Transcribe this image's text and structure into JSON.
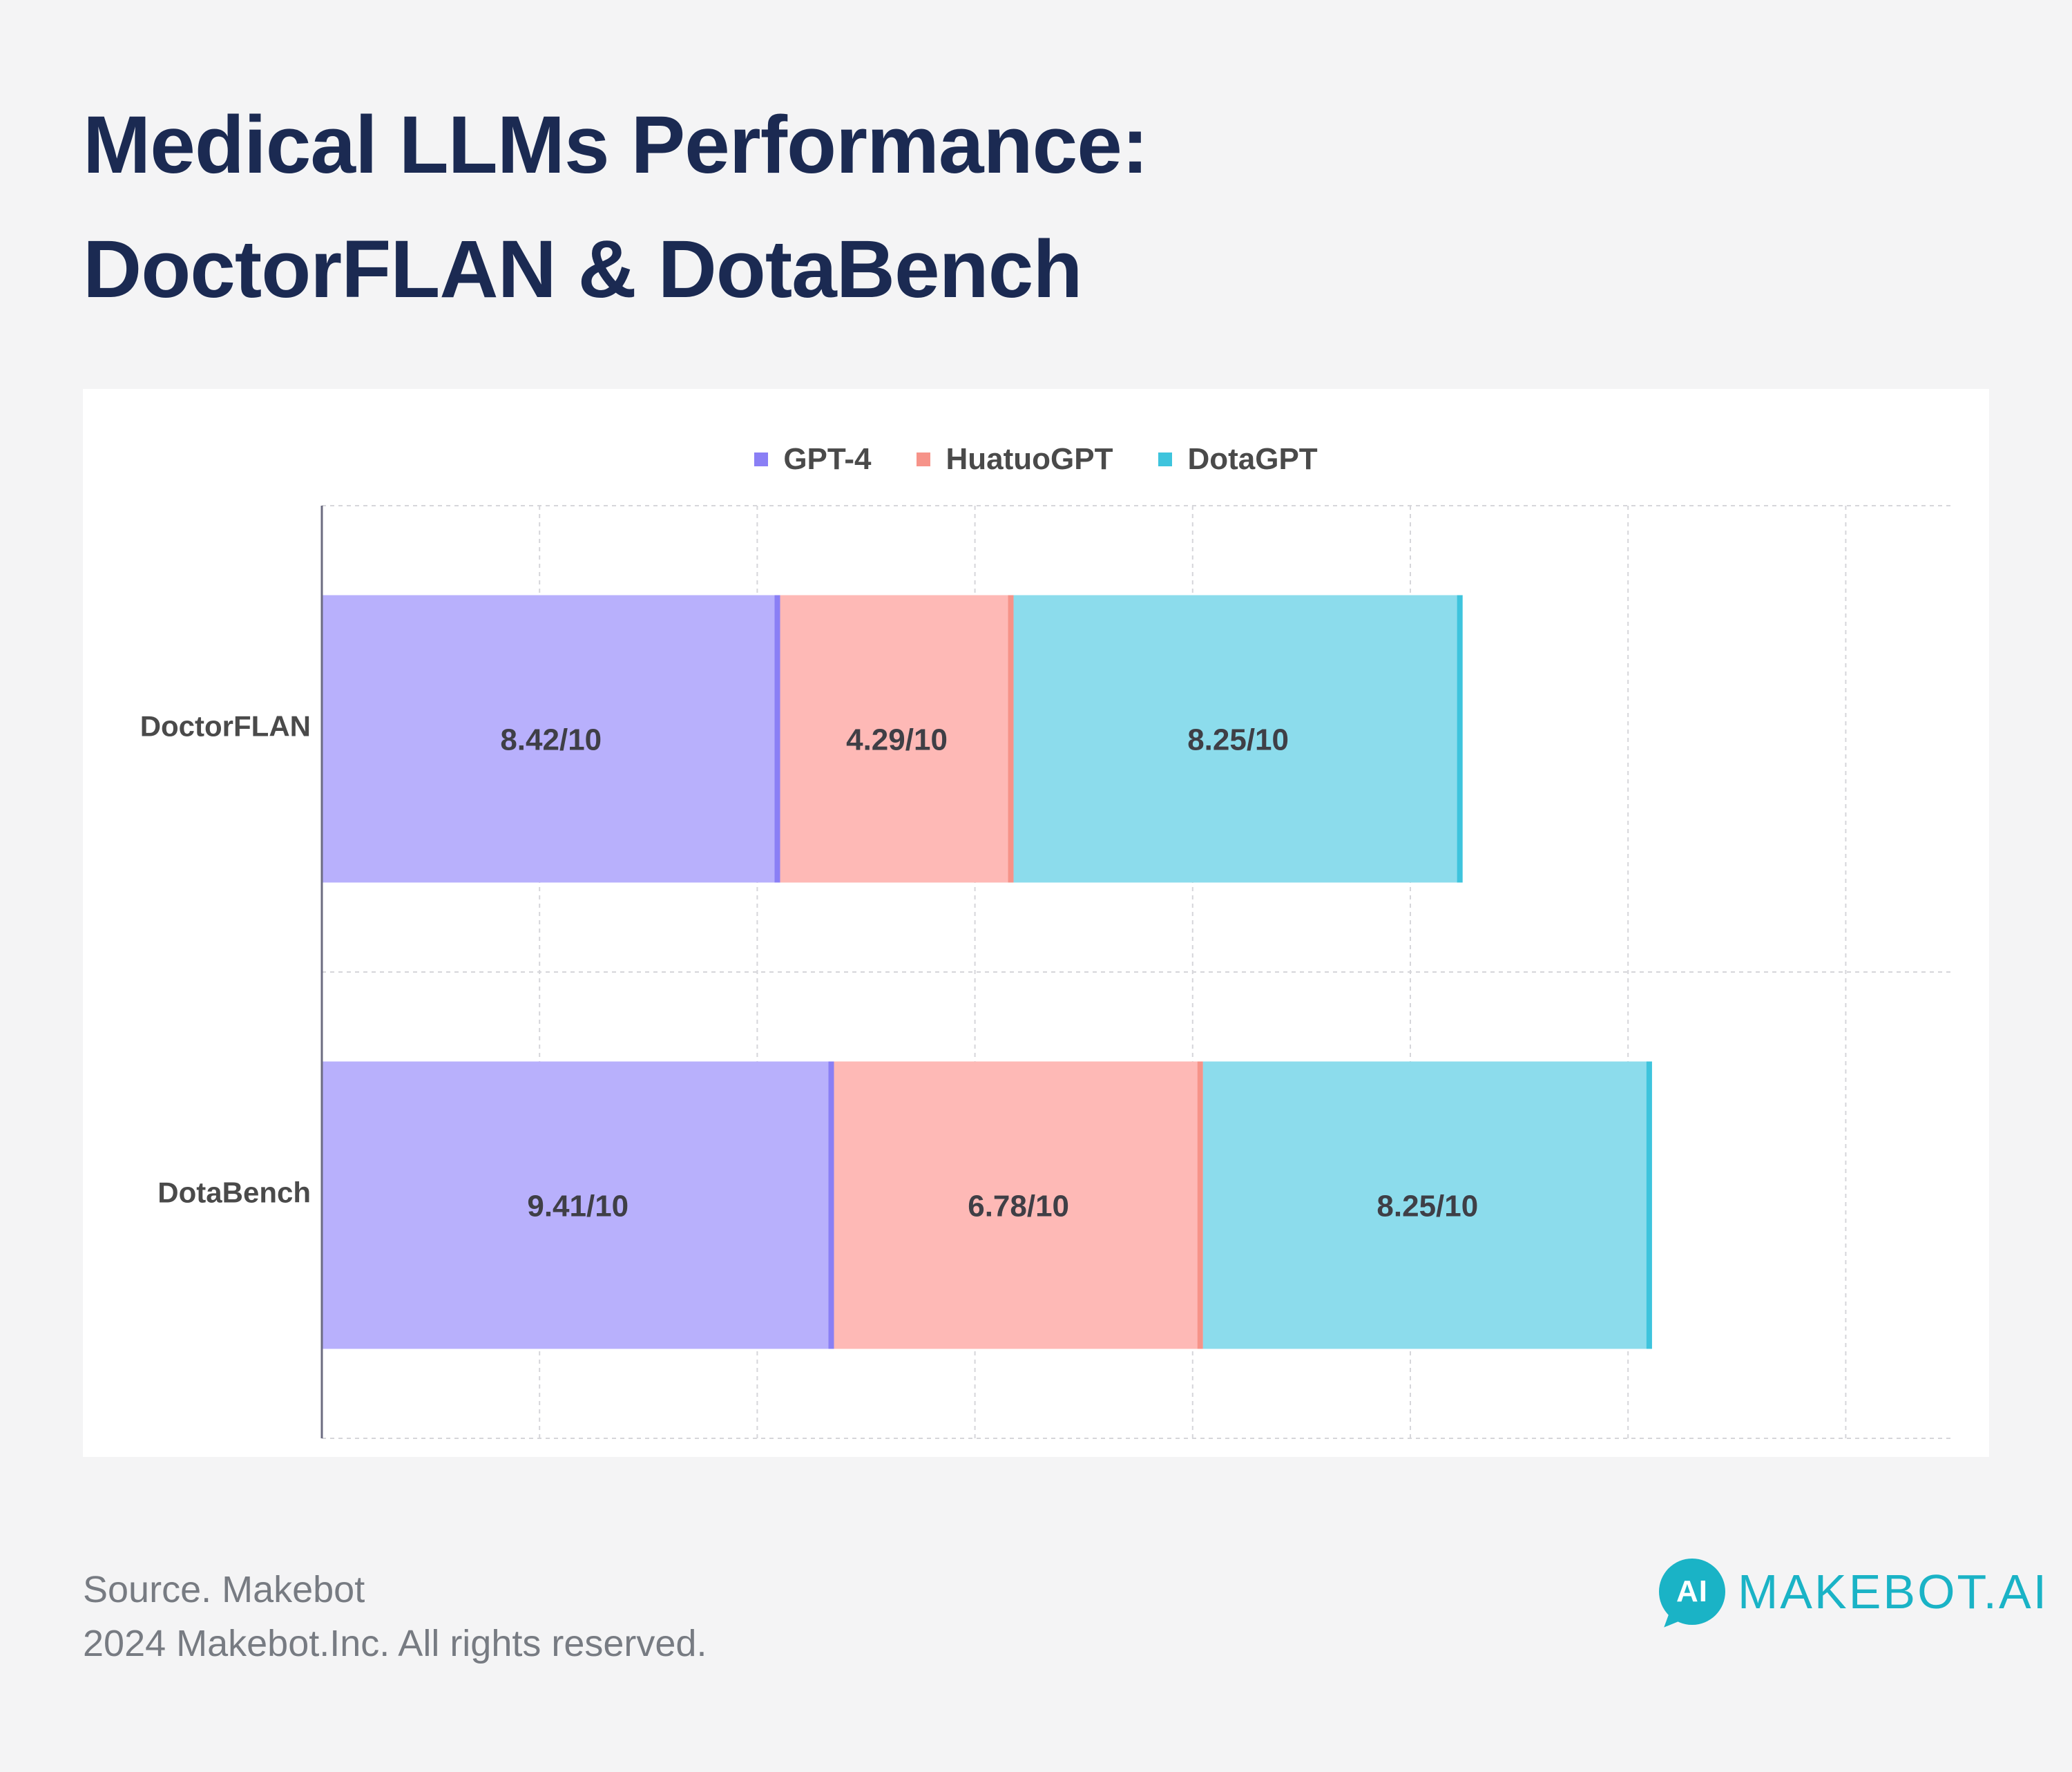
{
  "title_line1": "Medical LLMs Performance:",
  "title_line2": "DoctorFLAN & DotaBench",
  "chart_data": {
    "type": "bar",
    "orientation": "horizontal",
    "stacked": true,
    "categories": [
      "DoctorFLAN",
      "DotaBench"
    ],
    "series": [
      {
        "name": "GPT-4",
        "values": [
          8.42,
          9.41
        ],
        "labels": [
          "8.42/10",
          "9.41/10"
        ],
        "color": "#b8b0fc",
        "edge_color": "#8a7ff5"
      },
      {
        "name": "HuatuoGPT",
        "values": [
          4.29,
          6.78
        ],
        "labels": [
          "4.29/10",
          "6.78/10"
        ],
        "color": "#feb9b6",
        "edge_color": "#f69389"
      },
      {
        "name": "DotaGPT",
        "values": [
          8.25,
          8.25
        ],
        "labels": [
          "8.25/10",
          "8.25/10"
        ],
        "color": "#8cdcec",
        "edge_color": "#3ec4dd"
      }
    ],
    "xlim": [
      0,
      30
    ],
    "grid": true,
    "legend_position": "top-center",
    "axis_tick_labels_shown": false
  },
  "footer": {
    "source": "Source. Makebot",
    "copyright": "2024 Makebot.Inc. All rights reserved."
  },
  "logo": {
    "mark": "AI",
    "text": "MAKEBOT.AI",
    "color": "#1ab3c6"
  }
}
